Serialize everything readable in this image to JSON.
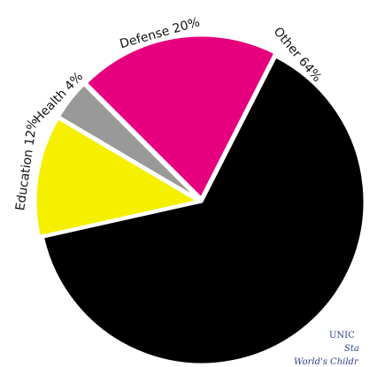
{
  "chart_data": {
    "type": "pie",
    "title": "",
    "slices": [
      {
        "label": "Other 64%",
        "value": 64,
        "color": "#000000"
      },
      {
        "label": "Education 12%",
        "value": 12,
        "color": "#f5f000"
      },
      {
        "label": "Health 4%",
        "value": 4,
        "color": "#999999"
      },
      {
        "label": "Defense 20%",
        "value": 20,
        "color": "#e6007e"
      }
    ],
    "slice_border_color": "#ffffff",
    "legend": "none"
  },
  "source": {
    "line1": "UNIC",
    "line2": "Sta",
    "line3": "World's Childr"
  }
}
